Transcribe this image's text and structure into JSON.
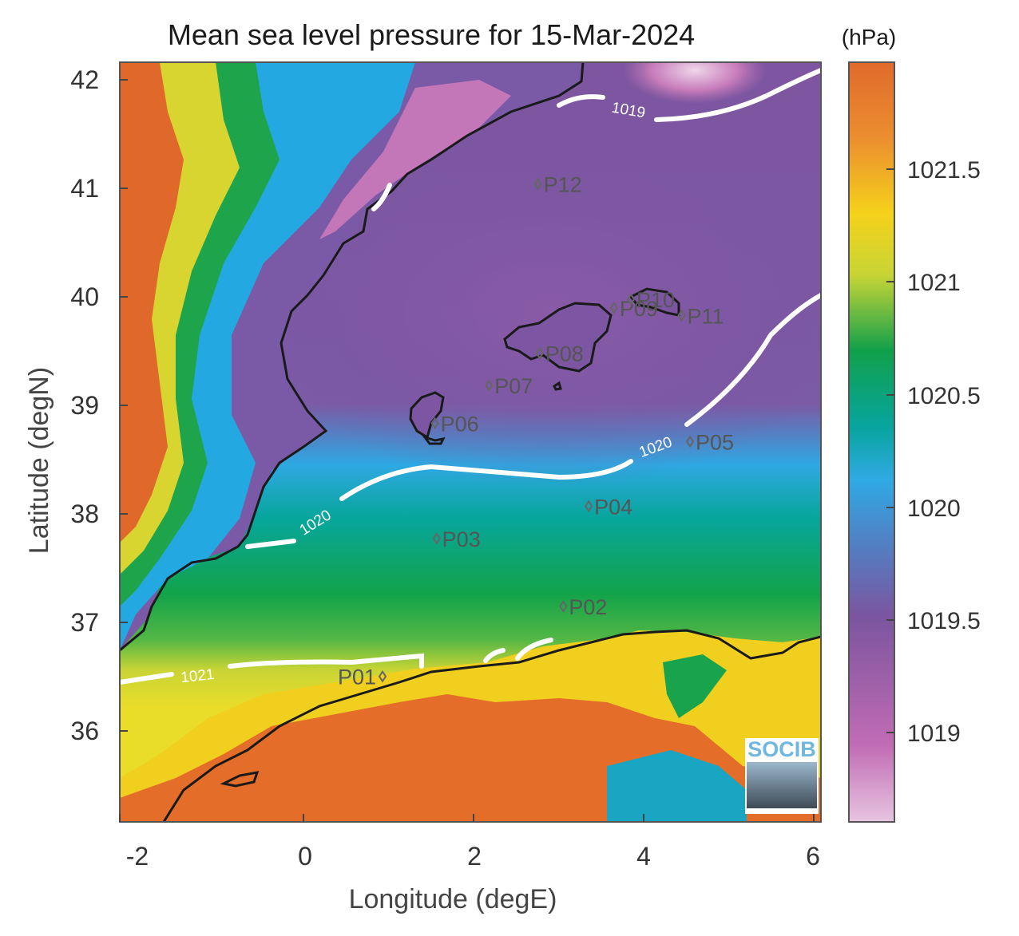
{
  "title": "Mean sea level pressure for 15-Mar-2024",
  "x_label": "Longitude (degE)",
  "y_label": "Latitude (degN)",
  "x_ticks": [
    "-2",
    "0",
    "2",
    "4",
    "6"
  ],
  "y_ticks": [
    "42",
    "41",
    "40",
    "39",
    "38",
    "37",
    "36"
  ],
  "colorbar": {
    "unit": "(hPa)",
    "ticks": [
      "1021.5",
      "1021",
      "1020.5",
      "1020",
      "1019.5",
      "1019"
    ],
    "range": [
      1018.6,
      1021.95
    ],
    "colors": [
      "#e7c5e0",
      "#c16cb4",
      "#7b559f",
      "#2fa9e3",
      "#07a59e",
      "#10a04b",
      "#c7d435",
      "#f5d21a",
      "#eb8e2f",
      "#e06a2b"
    ]
  },
  "map_extent": {
    "lon": [
      -2.25,
      6.05
    ],
    "lat": [
      35.15,
      42.2
    ]
  },
  "contours": [
    {
      "label": "1019"
    },
    {
      "label": "1020"
    },
    {
      "label": "1020"
    },
    {
      "label": "1021"
    }
  ],
  "stations": [
    {
      "id": "P01",
      "lon": 0.86,
      "lat": 36.5
    },
    {
      "id": "P02",
      "lon": 3.0,
      "lat": 37.15
    },
    {
      "id": "P03",
      "lon": 1.5,
      "lat": 37.78
    },
    {
      "id": "P04",
      "lon": 3.3,
      "lat": 38.08
    },
    {
      "id": "P05",
      "lon": 4.5,
      "lat": 38.68
    },
    {
      "id": "P06",
      "lon": 1.48,
      "lat": 38.85
    },
    {
      "id": "P07",
      "lon": 2.12,
      "lat": 39.2
    },
    {
      "id": "P08",
      "lon": 2.72,
      "lat": 39.5
    },
    {
      "id": "P09",
      "lon": 3.6,
      "lat": 39.92
    },
    {
      "id": "P10",
      "lon": 3.8,
      "lat": 40.0
    },
    {
      "id": "P11",
      "lon": 4.4,
      "lat": 39.85
    },
    {
      "id": "P12",
      "lon": 2.7,
      "lat": 41.07
    }
  ],
  "logo": {
    "text": "SOCIB"
  }
}
